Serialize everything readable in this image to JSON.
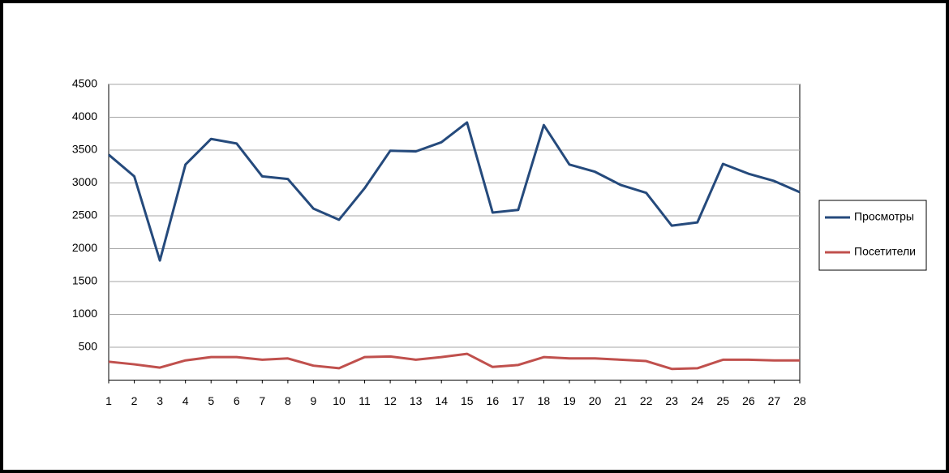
{
  "chart_data": {
    "type": "line",
    "x": [
      1,
      2,
      3,
      4,
      5,
      6,
      7,
      8,
      9,
      10,
      11,
      12,
      13,
      14,
      15,
      16,
      17,
      18,
      19,
      20,
      21,
      22,
      23,
      24,
      25,
      26,
      27,
      28
    ],
    "xlim": [
      1,
      28
    ],
    "xticks": [
      1,
      2,
      3,
      4,
      5,
      6,
      7,
      8,
      9,
      10,
      11,
      12,
      13,
      14,
      15,
      16,
      17,
      18,
      19,
      20,
      21,
      22,
      23,
      24,
      25,
      26,
      27,
      28
    ],
    "ylim": [
      0,
      4500
    ],
    "yticks": [
      500,
      1000,
      1500,
      2000,
      2500,
      3000,
      3500,
      4000,
      4500
    ],
    "grid": true,
    "legend": "right",
    "series": [
      {
        "name": "Просмотры",
        "color": "#254a7c",
        "values": [
          3430,
          3100,
          1820,
          3280,
          3670,
          3600,
          3100,
          3060,
          2610,
          2440,
          2920,
          3490,
          3480,
          3620,
          3920,
          2550,
          2590,
          3880,
          3280,
          3170,
          2970,
          2850,
          2350,
          2400,
          3290,
          3140,
          3030,
          2860
        ]
      },
      {
        "name": "Посетители",
        "color": "#c0504d",
        "values": [
          280,
          240,
          190,
          300,
          350,
          350,
          310,
          330,
          220,
          180,
          350,
          360,
          310,
          350,
          400,
          200,
          230,
          350,
          330,
          330,
          310,
          290,
          170,
          180,
          310,
          310,
          300,
          300
        ]
      }
    ]
  }
}
